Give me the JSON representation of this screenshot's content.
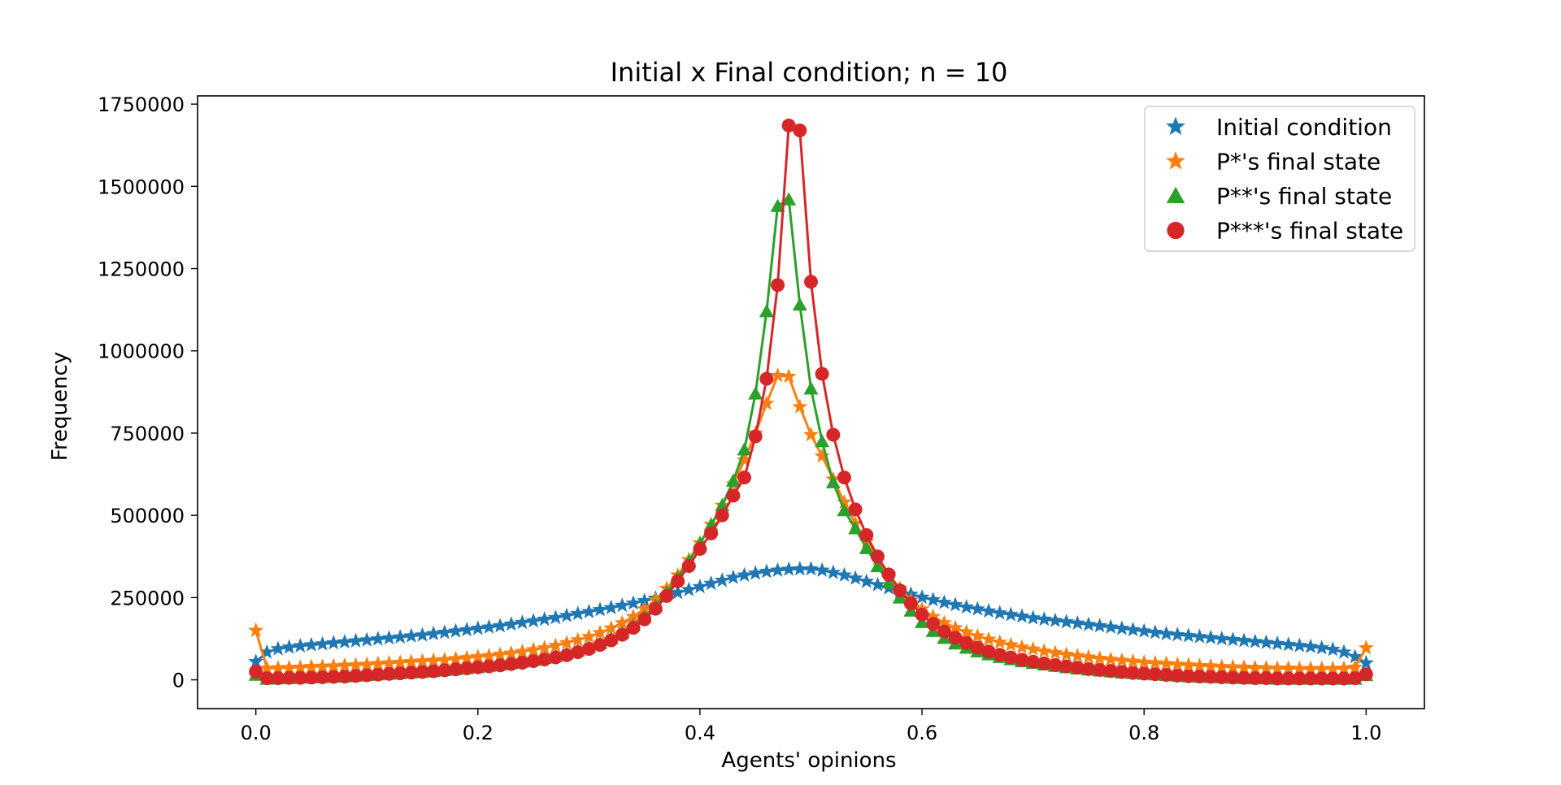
{
  "chart_data": {
    "type": "line",
    "title": "Initial x Final condition; n = 10",
    "xlabel": "Agents' opinions",
    "ylabel": "Frequency",
    "xlim": [
      -0.0525,
      1.0525
    ],
    "ylim": [
      -87500,
      1775000
    ],
    "xticks": [
      0.0,
      0.2,
      0.4,
      0.6,
      0.8,
      1.0
    ],
    "xtick_labels": [
      "0.0",
      "0.2",
      "0.4",
      "0.6",
      "0.8",
      "1.0"
    ],
    "yticks": [
      0,
      250000,
      500000,
      750000,
      1000000,
      1250000,
      1500000,
      1750000
    ],
    "ytick_labels": [
      "0",
      "250000",
      "500000",
      "750000",
      "1000000",
      "1250000",
      "1500000",
      "1750000"
    ],
    "grid": false,
    "legend_position": "top-right",
    "x": [
      0.0,
      0.01,
      0.02,
      0.03,
      0.04,
      0.05,
      0.06,
      0.07,
      0.08,
      0.09,
      0.1,
      0.11,
      0.12,
      0.13,
      0.14,
      0.15,
      0.16,
      0.17,
      0.18,
      0.19,
      0.2,
      0.21,
      0.22,
      0.23,
      0.24,
      0.25,
      0.26,
      0.27,
      0.28,
      0.29,
      0.3,
      0.31,
      0.32,
      0.33,
      0.34,
      0.35,
      0.36,
      0.37,
      0.38,
      0.39,
      0.4,
      0.41,
      0.42,
      0.43,
      0.44,
      0.45,
      0.46,
      0.47,
      0.48,
      0.49,
      0.5,
      0.51,
      0.52,
      0.53,
      0.54,
      0.55,
      0.56,
      0.57,
      0.58,
      0.59,
      0.6,
      0.61,
      0.62,
      0.63,
      0.64,
      0.65,
      0.66,
      0.67,
      0.68,
      0.69,
      0.7,
      0.71,
      0.72,
      0.73,
      0.74,
      0.75,
      0.76,
      0.77,
      0.78,
      0.79,
      0.8,
      0.81,
      0.82,
      0.83,
      0.84,
      0.85,
      0.86,
      0.87,
      0.88,
      0.89,
      0.9,
      0.91,
      0.92,
      0.93,
      0.94,
      0.95,
      0.96,
      0.97,
      0.98,
      0.99,
      1.0
    ],
    "series": [
      {
        "name": "Initial condition",
        "color": "#1f77b4",
        "marker": "star",
        "values": [
          55000,
          84000,
          94000,
          99000,
          103000,
          106000,
          109000,
          112000,
          115000,
          118000,
          121000,
          124000,
          127000,
          130000,
          133000,
          136000,
          140000,
          144000,
          148000,
          152000,
          156000,
          160000,
          164000,
          169000,
          174000,
          179000,
          184000,
          189000,
          195000,
          201000,
          207000,
          213000,
          219000,
          226000,
          233000,
          240000,
          248000,
          256000,
          265000,
          274000,
          283000,
          293000,
          302000,
          311000,
          318000,
          324000,
          329000,
          333000,
          336000,
          337000,
          337000,
          333000,
          326000,
          318000,
          309000,
          299000,
          289000,
          279000,
          269000,
          260000,
          251000,
          243000,
          235000,
          228000,
          221000,
          215000,
          209000,
          203000,
          198000,
          193000,
          188000,
          184000,
          180000,
          176000,
          172000,
          168000,
          164000,
          160000,
          156000,
          152000,
          148000,
          144000,
          140000,
          137000,
          134000,
          131000,
          128000,
          125000,
          122000,
          119000,
          116000,
          113000,
          110000,
          107000,
          104000,
          101000,
          97000,
          92000,
          84000,
          70000,
          51000
        ]
      },
      {
        "name": "P*'s final state",
        "color": "#ff7f0e",
        "marker": "star",
        "values": [
          150000,
          35000,
          36000,
          37000,
          38000,
          40000,
          41000,
          42000,
          44000,
          45000,
          47000,
          49000,
          51000,
          53000,
          55000,
          57000,
          59000,
          61000,
          64000,
          67000,
          70000,
          73000,
          77000,
          81000,
          86000,
          91000,
          97000,
          104000,
          112000,
          121000,
          131000,
          143000,
          157000,
          173000,
          192000,
          215000,
          243000,
          277000,
          318000,
          365000,
          416000,
          472000,
          530000,
          595000,
          668000,
          750000,
          840000,
          925000,
          922000,
          830000,
          745000,
          680000,
          610000,
          540000,
          475000,
          420000,
          368000,
          320000,
          278000,
          242000,
          215000,
          192000,
          173000,
          158000,
          145000,
          133000,
          123000,
          114000,
          106000,
          99000,
          93000,
          87000,
          82000,
          77000,
          73000,
          69000,
          65000,
          62000,
          59000,
          56000,
          53000,
          51000,
          49000,
          47000,
          45000,
          43000,
          42000,
          40000,
          39000,
          38000,
          37000,
          36000,
          35000,
          35000,
          34000,
          34000,
          34000,
          34000,
          35000,
          38000,
          97000
        ]
      },
      {
        "name": "P**'s final state",
        "color": "#2ca02c",
        "marker": "triangle",
        "values": [
          15000,
          3000,
          4000,
          5000,
          6000,
          7000,
          8000,
          9000,
          10000,
          12000,
          14000,
          16000,
          18000,
          20000,
          22000,
          24000,
          26000,
          29000,
          32000,
          35000,
          38000,
          42000,
          46000,
          50000,
          55000,
          60000,
          66000,
          72000,
          80000,
          89000,
          99000,
          111000,
          126000,
          143000,
          165000,
          192000,
          225000,
          265000,
          310000,
          360000,
          415000,
          470000,
          530000,
          605000,
          700000,
          870000,
          1120000,
          1440000,
          1460000,
          1140000,
          885000,
          725000,
          600000,
          515000,
          460000,
          400000,
          345000,
          295000,
          250000,
          210000,
          175000,
          148000,
          127000,
          110000,
          97000,
          86000,
          77000,
          69000,
          62000,
          56000,
          51000,
          46000,
          42000,
          38000,
          34000,
          31000,
          28000,
          25000,
          22000,
          20000,
          18000,
          16000,
          14000,
          12000,
          10000,
          9000,
          8000,
          7000,
          6000,
          5000,
          4000,
          4000,
          3000,
          3000,
          3000,
          3000,
          3000,
          3000,
          3000,
          3000,
          14000
        ],
        "x": [
          0.0,
          0.01,
          0.02,
          0.03,
          0.04,
          0.05,
          0.06,
          0.07,
          0.08,
          0.09,
          0.1,
          0.11,
          0.12,
          0.13,
          0.14,
          0.15,
          0.16,
          0.17,
          0.18,
          0.19,
          0.2,
          0.21,
          0.22,
          0.23,
          0.24,
          0.25,
          0.26,
          0.27,
          0.28,
          0.29,
          0.3,
          0.31,
          0.32,
          0.33,
          0.34,
          0.35,
          0.36,
          0.37,
          0.38,
          0.39,
          0.4,
          0.41,
          0.42,
          0.43,
          0.44,
          0.45,
          0.46,
          0.47,
          0.48,
          0.49,
          0.5,
          0.51,
          0.52,
          0.53,
          0.54,
          0.55,
          0.56,
          0.57,
          0.58,
          0.59,
          0.6,
          0.61,
          0.62,
          0.63,
          0.64,
          0.65,
          0.66,
          0.67,
          0.68,
          0.69,
          0.7,
          0.71,
          0.72,
          0.73,
          0.74,
          0.75,
          0.76,
          0.77,
          0.78,
          0.79,
          0.8,
          0.81,
          0.82,
          0.83,
          0.84,
          0.85,
          0.86,
          0.87,
          0.88,
          0.89,
          0.9,
          0.91,
          0.92,
          0.93,
          0.94,
          0.95,
          0.96,
          0.97,
          0.98,
          0.99,
          1.0
        ]
      },
      {
        "name": "P***'s final state",
        "color": "#d62728",
        "marker": "circle",
        "values": [
          25000,
          5000,
          5000,
          6000,
          6000,
          7000,
          8000,
          9000,
          10000,
          12000,
          14000,
          16000,
          18000,
          20000,
          22000,
          24000,
          26000,
          29000,
          32000,
          35000,
          38000,
          41000,
          44000,
          48000,
          52000,
          57000,
          62000,
          68000,
          75000,
          84000,
          94000,
          106000,
          120000,
          137000,
          158000,
          184000,
          216000,
          255000,
          300000,
          346000,
          398000,
          445000,
          500000,
          560000,
          615000,
          740000,
          915000,
          1200000,
          1685000,
          1670000,
          1210000,
          930000,
          745000,
          615000,
          518000,
          440000,
          375000,
          320000,
          272000,
          232000,
          198000,
          170000,
          147000,
          128000,
          112000,
          98000,
          86000,
          76000,
          68000,
          61000,
          55000,
          50000,
          45000,
          41000,
          37000,
          33000,
          30000,
          27000,
          24000,
          21000,
          19000,
          17000,
          15000,
          13000,
          11000,
          10000,
          9000,
          8000,
          7000,
          6000,
          5000,
          5000,
          4000,
          4000,
          4000,
          4000,
          4000,
          4000,
          4000,
          5000,
          17000
        ],
        "x": [
          0.0,
          0.01,
          0.02,
          0.03,
          0.04,
          0.05,
          0.06,
          0.07,
          0.08,
          0.09,
          0.1,
          0.11,
          0.12,
          0.13,
          0.14,
          0.15,
          0.16,
          0.17,
          0.18,
          0.19,
          0.2,
          0.21,
          0.22,
          0.23,
          0.24,
          0.25,
          0.26,
          0.27,
          0.28,
          0.29,
          0.3,
          0.31,
          0.32,
          0.33,
          0.34,
          0.35,
          0.36,
          0.37,
          0.38,
          0.39,
          0.4,
          0.41,
          0.42,
          0.43,
          0.44,
          0.45,
          0.46,
          0.47,
          0.48,
          0.49,
          0.5,
          0.51,
          0.52,
          0.53,
          0.54,
          0.55,
          0.56,
          0.57,
          0.58,
          0.59,
          0.6,
          0.61,
          0.62,
          0.63,
          0.64,
          0.65,
          0.66,
          0.67,
          0.68,
          0.69,
          0.7,
          0.71,
          0.72,
          0.73,
          0.74,
          0.75,
          0.76,
          0.77,
          0.78,
          0.79,
          0.8,
          0.81,
          0.82,
          0.83,
          0.84,
          0.85,
          0.86,
          0.87,
          0.88,
          0.89,
          0.9,
          0.91,
          0.92,
          0.93,
          0.94,
          0.95,
          0.96,
          0.97,
          0.98,
          0.99,
          1.0
        ]
      }
    ]
  }
}
